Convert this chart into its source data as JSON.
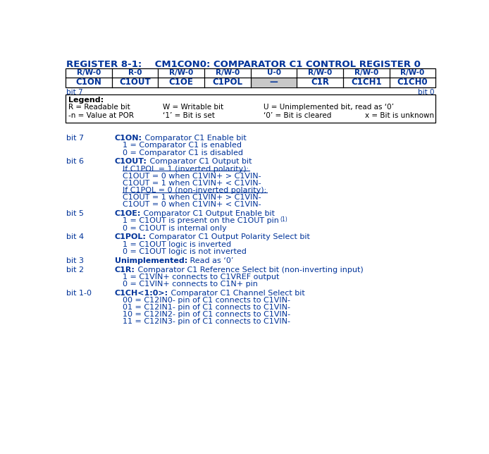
{
  "title": "REGISTER 8-1:    CM1CON0: COMPARATOR C1 CONTROL REGISTER 0",
  "bg_color": "#ffffff",
  "blue": "#003399",
  "reg_headers": [
    "R/W-0",
    "R-0",
    "R/W-0",
    "R/W-0",
    "U-0",
    "R/W-0",
    "R/W-0",
    "R/W-0"
  ],
  "reg_bits": [
    "C1ON",
    "C1OUT",
    "C1OE",
    "C1POL",
    "—",
    "C1R",
    "C1CH1",
    "C1CH0"
  ],
  "reg_bit_shaded": [
    false,
    false,
    false,
    false,
    true,
    false,
    false,
    false
  ],
  "bit_label_left": "bit 7",
  "bit_label_right": "bit 0",
  "legend_title": "Legend:",
  "legend_rows": [
    [
      "R = Readable bit",
      "W = Writable bit",
      "U = Unimplemented bit, read as ‘0’",
      ""
    ],
    [
      "-n = Value at POR",
      "‘1’ = Bit is set",
      "‘0’ = Bit is cleared",
      "x = Bit is unknown"
    ]
  ],
  "descriptions": [
    {
      "bit_label": "bit 7",
      "title_bold": "C1ON:",
      "title_rest": " Comparator C1 Enable bit",
      "items": [
        {
          "text": "1 = Comparator C1 is enabled",
          "underline": false,
          "superscript": ""
        },
        {
          "text": "0 = Comparator C1 is disabled",
          "underline": false,
          "superscript": ""
        }
      ]
    },
    {
      "bit_label": "bit 6",
      "title_bold": "C1OUT:",
      "title_rest": " Comparator C1 Output bit",
      "items": [
        {
          "text": "If C1POL = 1 (inverted polarity):",
          "underline": true,
          "superscript": ""
        },
        {
          "text": "C1OUT = 0 when C1VIN+ > C1VIN-",
          "underline": false,
          "superscript": ""
        },
        {
          "text": "C1OUT = 1 when C1VIN+ < C1VIN-",
          "underline": false,
          "superscript": ""
        },
        {
          "text": "If C1POL = 0 (non-inverted polarity):",
          "underline": true,
          "superscript": ""
        },
        {
          "text": "C1OUT = 1 when C1VIN+ > C1VIN-",
          "underline": false,
          "superscript": ""
        },
        {
          "text": "C1OUT = 0 when C1VIN+ < C1VIN-",
          "underline": false,
          "superscript": ""
        }
      ]
    },
    {
      "bit_label": "bit 5",
      "title_bold": "C1OE:",
      "title_rest": " Comparator C1 Output Enable bit",
      "items": [
        {
          "text": "1 = C1OUT is present on the C1OUT pin",
          "underline": false,
          "superscript": "(1)"
        },
        {
          "text": "0 = C1OUT is internal only",
          "underline": false,
          "superscript": ""
        }
      ]
    },
    {
      "bit_label": "bit 4",
      "title_bold": "C1POL:",
      "title_rest": " Comparator C1 Output Polarity Select bit",
      "items": [
        {
          "text": "1 = C1OUT logic is inverted",
          "underline": false,
          "superscript": ""
        },
        {
          "text": "0 = C1OUT logic is not inverted",
          "underline": false,
          "superscript": ""
        }
      ]
    },
    {
      "bit_label": "bit 3",
      "title_bold": "Unimplemented:",
      "title_rest": " Read as ‘0’",
      "items": []
    },
    {
      "bit_label": "bit 2",
      "title_bold": "C1R:",
      "title_rest": " Comparator C1 Reference Select bit (non-inverting input)",
      "items": [
        {
          "text": "1 = C1VIN+ connects to C1VREF output",
          "underline": false,
          "superscript": ""
        },
        {
          "text": "0 = C1VIN+ connects to C1N+ pin",
          "underline": false,
          "superscript": ""
        }
      ]
    },
    {
      "bit_label": "bit 1-0",
      "title_bold": "C1CH<1:0>:",
      "title_rest": " Comparator C1 Channel Select bit",
      "items": [
        {
          "text": "00 = C12IN0- pin of C1 connects to C1VIN-",
          "underline": false,
          "superscript": ""
        },
        {
          "text": "01 = C12IN1- pin of C1 connects to C1VIN-",
          "underline": false,
          "superscript": ""
        },
        {
          "text": "10 = C12IN2- pin of C1 connects to C1VIN-",
          "underline": false,
          "superscript": ""
        },
        {
          "text": "11 = C12IN3- pin of C1 connects to C1VIN-",
          "underline": false,
          "superscript": ""
        }
      ]
    }
  ]
}
